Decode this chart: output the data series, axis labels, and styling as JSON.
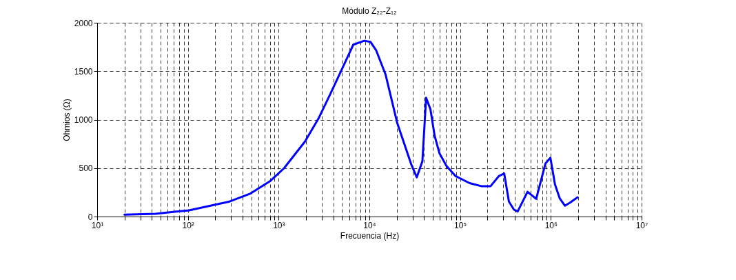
{
  "chart_data": {
    "type": "line",
    "title": "Módulo Z₂₂-Z₁₂",
    "xlabel": "Frecuencia (Hz)",
    "ylabel": "Ohmios (Ω)",
    "log": "x",
    "grid": true,
    "marker": "none",
    "line_style": "solid",
    "xlim": [
      10,
      10000000
    ],
    "ylim": [
      0,
      2000
    ],
    "yticks": [
      0,
      500,
      1000,
      1500,
      2000
    ],
    "xticks": [
      {
        "value": 10,
        "label": "10¹"
      },
      {
        "value": 20,
        "label": null
      },
      {
        "value": 30,
        "label": null
      },
      {
        "value": 40,
        "label": null
      },
      {
        "value": 50,
        "label": null
      },
      {
        "value": 60,
        "label": null
      },
      {
        "value": 70,
        "label": null
      },
      {
        "value": 80,
        "label": null
      },
      {
        "value": 90,
        "label": null
      },
      {
        "value": 100,
        "label": "10²"
      },
      {
        "value": 200,
        "label": null
      },
      {
        "value": 300,
        "label": null
      },
      {
        "value": 400,
        "label": null
      },
      {
        "value": 500,
        "label": null
      },
      {
        "value": 600,
        "label": null
      },
      {
        "value": 700,
        "label": null
      },
      {
        "value": 800,
        "label": null
      },
      {
        "value": 900,
        "label": null
      },
      {
        "value": 1000,
        "label": "10³"
      },
      {
        "value": 2000,
        "label": null
      },
      {
        "value": 3000,
        "label": null
      },
      {
        "value": 4000,
        "label": null
      },
      {
        "value": 5000,
        "label": null
      },
      {
        "value": 6000,
        "label": null
      },
      {
        "value": 7000,
        "label": null
      },
      {
        "value": 8000,
        "label": null
      },
      {
        "value": 9000,
        "label": null
      },
      {
        "value": 10000,
        "label": "10⁴"
      },
      {
        "value": 20000,
        "label": null
      },
      {
        "value": 30000,
        "label": null
      },
      {
        "value": 40000,
        "label": null
      },
      {
        "value": 50000,
        "label": null
      },
      {
        "value": 60000,
        "label": null
      },
      {
        "value": 70000,
        "label": null
      },
      {
        "value": 80000,
        "label": null
      },
      {
        "value": 90000,
        "label": null
      },
      {
        "value": 100000,
        "label": "10⁵"
      },
      {
        "value": 200000,
        "label": null
      },
      {
        "value": 300000,
        "label": null
      },
      {
        "value": 400000,
        "label": null
      },
      {
        "value": 500000,
        "label": null
      },
      {
        "value": 600000,
        "label": null
      },
      {
        "value": 700000,
        "label": null
      },
      {
        "value": 800000,
        "label": null
      },
      {
        "value": 900000,
        "label": null
      },
      {
        "value": 1000000,
        "label": "10⁶"
      },
      {
        "value": 2000000,
        "label": null
      },
      {
        "value": 3000000,
        "label": null
      },
      {
        "value": 4000000,
        "label": null
      },
      {
        "value": 5000000,
        "label": null
      },
      {
        "value": 6000000,
        "label": null
      },
      {
        "value": 7000000,
        "label": null
      },
      {
        "value": 8000000,
        "label": null
      },
      {
        "value": 9000000,
        "label": null
      },
      {
        "value": 10000000,
        "label": "10⁷"
      }
    ],
    "series": [
      {
        "color": "#0000ff",
        "x": [
          20,
          44,
          103,
          288,
          490,
          813,
          1150,
          1950,
          2750,
          3700,
          5000,
          6650,
          8800,
          10300,
          11900,
          15100,
          20300,
          29000,
          33300,
          38400,
          42200,
          47100,
          52400,
          59100,
          70500,
          89300,
          127000,
          171000,
          217000,
          267000,
          306000,
          345000,
          392000,
          431000,
          553000,
          689000,
          873000,
          988000,
          1110000,
          1250000,
          1430000,
          1620000,
          1960000
        ],
        "values": [
          19,
          29,
          64,
          155,
          238,
          369,
          500,
          774,
          1012,
          1262,
          1524,
          1774,
          1814,
          1802,
          1714,
          1464,
          964,
          536,
          405,
          571,
          1226,
          1107,
          833,
          655,
          524,
          417,
          345,
          314,
          314,
          417,
          445,
          155,
          71,
          52,
          255,
          183,
          548,
          607,
          333,
          190,
          112,
          143,
          198
        ]
      }
    ]
  }
}
